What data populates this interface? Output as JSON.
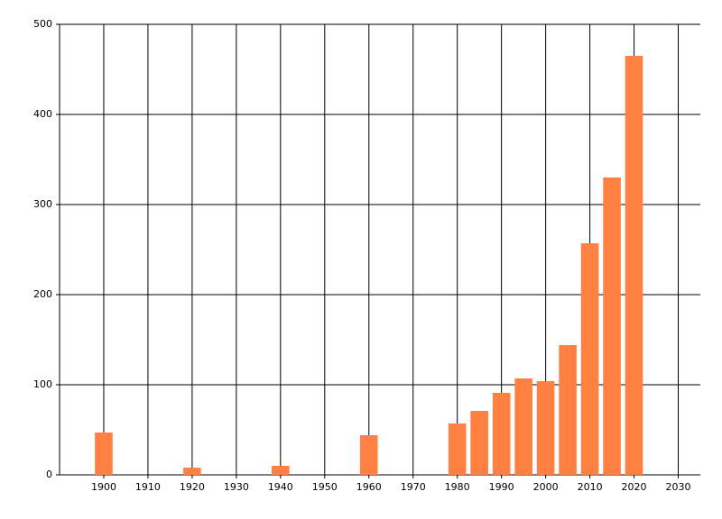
{
  "chart_data": {
    "type": "bar",
    "x": [
      1900,
      1920,
      1940,
      1960,
      1980,
      1985,
      1990,
      1995,
      2000,
      2005,
      2010,
      2015,
      2020
    ],
    "values": [
      47,
      8,
      10,
      44,
      57,
      71,
      91,
      107,
      104,
      144,
      257,
      330,
      465
    ],
    "color": "#ff8040",
    "xlim": [
      1890,
      2035
    ],
    "xticks": [
      1900,
      1910,
      1920,
      1930,
      1940,
      1950,
      1960,
      1970,
      1980,
      1990,
      2000,
      2010,
      2020,
      2030
    ],
    "ylim": [
      0,
      500
    ],
    "yticks": [
      0,
      100,
      200,
      300,
      400,
      500
    ],
    "grid": true
  }
}
